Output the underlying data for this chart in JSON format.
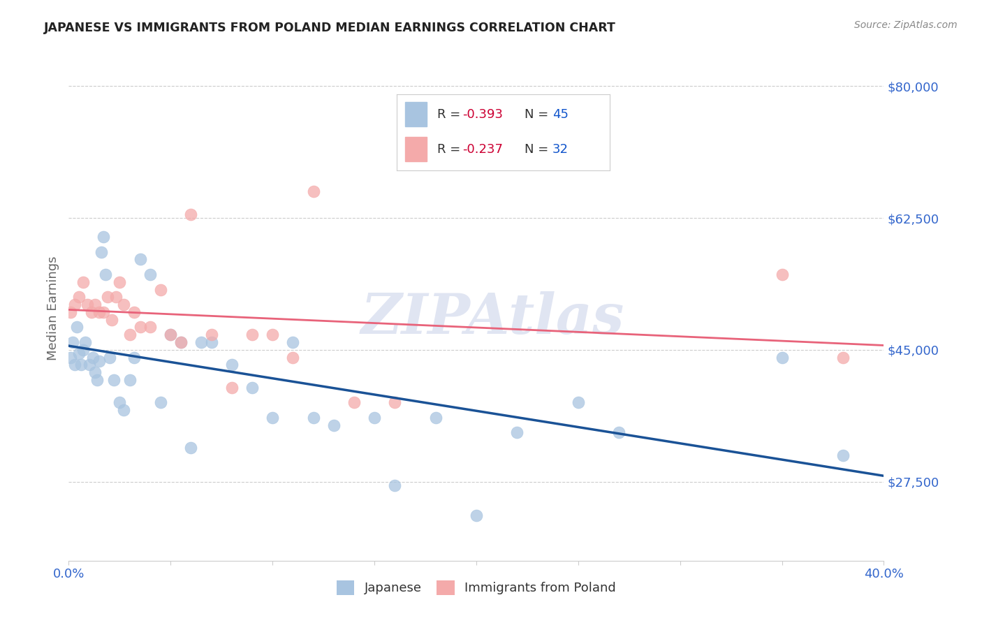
{
  "title": "JAPANESE VS IMMIGRANTS FROM POLAND MEDIAN EARNINGS CORRELATION CHART",
  "source": "Source: ZipAtlas.com",
  "ylabel": "Median Earnings",
  "yticks": [
    27500,
    45000,
    62500,
    80000
  ],
  "ytick_labels": [
    "$27,500",
    "$45,000",
    "$62,500",
    "$80,000"
  ],
  "xmin": 0.0,
  "xmax": 0.4,
  "ymin": 17000,
  "ymax": 84000,
  "blue_color": "#A8C4E0",
  "blue_line_color": "#1A5296",
  "pink_color": "#F4AAAA",
  "pink_line_color": "#E8637A",
  "blue_R": -0.393,
  "blue_N": 45,
  "pink_R": -0.237,
  "pink_N": 32,
  "watermark": "ZIPAtlas",
  "legend_label_blue": "Japanese",
  "legend_label_pink": "Immigrants from Poland",
  "japanese_x": [
    0.001,
    0.002,
    0.003,
    0.004,
    0.005,
    0.006,
    0.007,
    0.008,
    0.01,
    0.012,
    0.013,
    0.014,
    0.015,
    0.016,
    0.017,
    0.018,
    0.02,
    0.022,
    0.025,
    0.027,
    0.03,
    0.032,
    0.035,
    0.04,
    0.045,
    0.05,
    0.055,
    0.06,
    0.065,
    0.07,
    0.08,
    0.09,
    0.1,
    0.11,
    0.12,
    0.13,
    0.15,
    0.16,
    0.18,
    0.2,
    0.22,
    0.25,
    0.27,
    0.35,
    0.38
  ],
  "japanese_y": [
    44000,
    46000,
    43000,
    48000,
    44500,
    43000,
    45000,
    46000,
    43000,
    44000,
    42000,
    41000,
    43500,
    58000,
    60000,
    55000,
    44000,
    41000,
    38000,
    37000,
    41000,
    44000,
    57000,
    55000,
    38000,
    47000,
    46000,
    32000,
    46000,
    46000,
    43000,
    40000,
    36000,
    46000,
    36000,
    35000,
    36000,
    27000,
    36000,
    23000,
    34000,
    38000,
    34000,
    44000,
    31000
  ],
  "poland_x": [
    0.001,
    0.003,
    0.005,
    0.007,
    0.009,
    0.011,
    0.013,
    0.015,
    0.017,
    0.019,
    0.021,
    0.023,
    0.025,
    0.027,
    0.03,
    0.032,
    0.035,
    0.04,
    0.045,
    0.05,
    0.055,
    0.06,
    0.07,
    0.08,
    0.09,
    0.1,
    0.11,
    0.12,
    0.14,
    0.16,
    0.35,
    0.38
  ],
  "poland_y": [
    50000,
    51000,
    52000,
    54000,
    51000,
    50000,
    51000,
    50000,
    50000,
    52000,
    49000,
    52000,
    54000,
    51000,
    47000,
    50000,
    48000,
    48000,
    53000,
    47000,
    46000,
    63000,
    47000,
    40000,
    47000,
    47000,
    44000,
    66000,
    38000,
    38000,
    55000,
    44000
  ],
  "tick_color": "#3366CC",
  "dark_text": "#333333",
  "gray_text": "#666666"
}
